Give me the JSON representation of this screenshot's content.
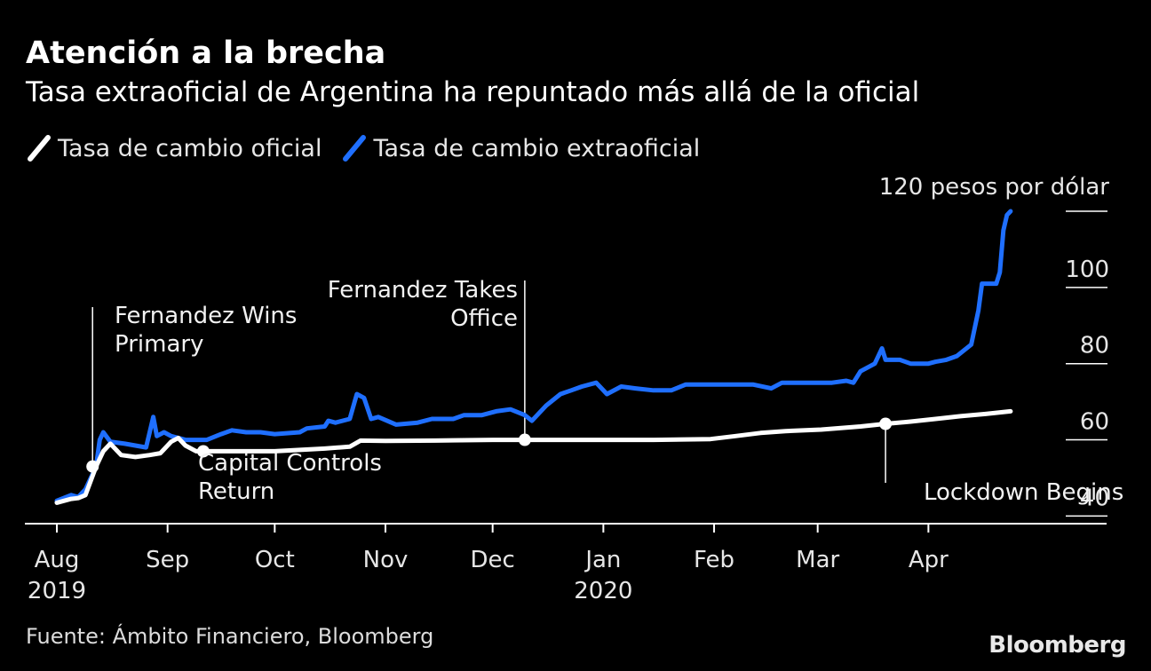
{
  "header": {
    "title": "Atención a la brecha",
    "subtitle": "Tasa extraoficial de Argentina ha repuntado más allá de la oficial"
  },
  "legend": [
    {
      "label": "Tasa de cambio oficial",
      "color": "#ffffff"
    },
    {
      "label": "Tasa de cambio extraoficial",
      "color": "#1f6fff"
    }
  ],
  "footer": {
    "source": "Fuente: Ámbito Financiero, Bloomberg",
    "brand": "Bloomberg"
  },
  "chart_data": {
    "type": "line",
    "y_unit_label": "120 pesos por dólar",
    "y_ticks": [
      40,
      60,
      80,
      100,
      120
    ],
    "y_tick_labels": [
      "40",
      "60",
      "80",
      "100",
      ""
    ],
    "ylim": [
      38,
      120
    ],
    "xlim": [
      "2019-08-01",
      "2020-04-30"
    ],
    "x_ticks": [
      {
        "date": "2019-08-01",
        "label": "Aug",
        "year": "2019"
      },
      {
        "date": "2019-09-01",
        "label": "Sep",
        "year": ""
      },
      {
        "date": "2019-10-01",
        "label": "Oct",
        "year": ""
      },
      {
        "date": "2019-11-01",
        "label": "Nov",
        "year": ""
      },
      {
        "date": "2019-12-01",
        "label": "Dec",
        "year": ""
      },
      {
        "date": "2020-01-01",
        "label": "Jan",
        "year": "2020"
      },
      {
        "date": "2020-02-01",
        "label": "Feb",
        "year": ""
      },
      {
        "date": "2020-03-01",
        "label": "Mar",
        "year": ""
      },
      {
        "date": "2020-04-01",
        "label": "Apr",
        "year": ""
      }
    ],
    "grid": false,
    "series": [
      {
        "name": "Tasa de cambio oficial",
        "color": "#ffffff",
        "points": [
          [
            "2019-08-01",
            43.5
          ],
          [
            "2019-08-05",
            44.5
          ],
          [
            "2019-08-07",
            44.7
          ],
          [
            "2019-08-09",
            45.5
          ],
          [
            "2019-08-12",
            53.0
          ],
          [
            "2019-08-14",
            57.0
          ],
          [
            "2019-08-16",
            59.0
          ],
          [
            "2019-08-19",
            56.0
          ],
          [
            "2019-08-23",
            55.5
          ],
          [
            "2019-08-27",
            56.0
          ],
          [
            "2019-08-30",
            56.5
          ],
          [
            "2019-09-02",
            59.5
          ],
          [
            "2019-09-04",
            60.5
          ],
          [
            "2019-09-06",
            58.5
          ],
          [
            "2019-09-09",
            57.0
          ],
          [
            "2019-09-16",
            57.0
          ],
          [
            "2019-09-23",
            57.0
          ],
          [
            "2019-10-01",
            57.0
          ],
          [
            "2019-10-15",
            57.7
          ],
          [
            "2019-10-22",
            58.2
          ],
          [
            "2019-10-25",
            59.8
          ],
          [
            "2019-11-01",
            59.7
          ],
          [
            "2019-11-15",
            59.8
          ],
          [
            "2019-12-01",
            60.0
          ],
          [
            "2019-12-10",
            60.0
          ],
          [
            "2020-01-01",
            60.0
          ],
          [
            "2020-01-15",
            60.0
          ],
          [
            "2020-01-31",
            60.2
          ],
          [
            "2020-02-07",
            61.0
          ],
          [
            "2020-02-14",
            61.8
          ],
          [
            "2020-02-21",
            62.3
          ],
          [
            "2020-03-02",
            62.7
          ],
          [
            "2020-03-13",
            63.5
          ],
          [
            "2020-03-20",
            64.2
          ],
          [
            "2020-03-27",
            64.8
          ],
          [
            "2020-04-03",
            65.5
          ],
          [
            "2020-04-10",
            66.2
          ],
          [
            "2020-04-17",
            66.8
          ],
          [
            "2020-04-24",
            67.5
          ]
        ]
      },
      {
        "name": "Tasa de cambio extraoficial",
        "color": "#1f6fff",
        "points": [
          [
            "2019-08-01",
            44.0
          ],
          [
            "2019-08-05",
            45.5
          ],
          [
            "2019-08-07",
            45.0
          ],
          [
            "2019-08-09",
            47.0
          ],
          [
            "2019-08-12",
            53.0
          ],
          [
            "2019-08-13",
            60.0
          ],
          [
            "2019-08-14",
            62.0
          ],
          [
            "2019-08-16",
            59.5
          ],
          [
            "2019-08-20",
            59.0
          ],
          [
            "2019-08-23",
            58.5
          ],
          [
            "2019-08-26",
            58.0
          ],
          [
            "2019-08-28",
            66.0
          ],
          [
            "2019-08-29",
            61.0
          ],
          [
            "2019-08-31",
            62.0
          ],
          [
            "2019-09-02",
            61.0
          ],
          [
            "2019-09-06",
            60.0
          ],
          [
            "2019-09-12",
            60.0
          ],
          [
            "2019-09-16",
            61.5
          ],
          [
            "2019-09-19",
            62.5
          ],
          [
            "2019-09-23",
            62.0
          ],
          [
            "2019-09-27",
            62.0
          ],
          [
            "2019-10-01",
            61.5
          ],
          [
            "2019-10-08",
            62.0
          ],
          [
            "2019-10-10",
            63.0
          ],
          [
            "2019-10-15",
            63.5
          ],
          [
            "2019-10-16",
            65.0
          ],
          [
            "2019-10-18",
            64.5
          ],
          [
            "2019-10-22",
            65.5
          ],
          [
            "2019-10-24",
            72.0
          ],
          [
            "2019-10-26",
            71.0
          ],
          [
            "2019-10-28",
            65.5
          ],
          [
            "2019-10-30",
            66.0
          ],
          [
            "2019-11-04",
            64.0
          ],
          [
            "2019-11-10",
            64.5
          ],
          [
            "2019-11-14",
            65.5
          ],
          [
            "2019-11-20",
            65.5
          ],
          [
            "2019-11-23",
            66.5
          ],
          [
            "2019-11-28",
            66.5
          ],
          [
            "2019-12-02",
            67.5
          ],
          [
            "2019-12-06",
            68.0
          ],
          [
            "2019-12-10",
            66.5
          ],
          [
            "2019-12-12",
            65.0
          ],
          [
            "2019-12-16",
            69.0
          ],
          [
            "2019-12-20",
            72.0
          ],
          [
            "2019-12-23",
            73.0
          ],
          [
            "2019-12-26",
            74.0
          ],
          [
            "2019-12-30",
            75.0
          ],
          [
            "2020-01-02",
            72.0
          ],
          [
            "2020-01-06",
            74.0
          ],
          [
            "2020-01-10",
            73.5
          ],
          [
            "2020-01-15",
            73.0
          ],
          [
            "2020-01-20",
            73.0
          ],
          [
            "2020-01-24",
            74.5
          ],
          [
            "2020-01-31",
            74.5
          ],
          [
            "2020-02-07",
            74.5
          ],
          [
            "2020-02-12",
            74.5
          ],
          [
            "2020-02-17",
            73.5
          ],
          [
            "2020-02-20",
            75.0
          ],
          [
            "2020-02-27",
            75.0
          ],
          [
            "2020-03-05",
            75.0
          ],
          [
            "2020-03-09",
            75.5
          ],
          [
            "2020-03-11",
            75.0
          ],
          [
            "2020-03-13",
            78.0
          ],
          [
            "2020-03-17",
            80.0
          ],
          [
            "2020-03-19",
            84.0
          ],
          [
            "2020-03-20",
            81.0
          ],
          [
            "2020-03-24",
            81.0
          ],
          [
            "2020-03-27",
            80.0
          ],
          [
            "2020-04-01",
            80.0
          ],
          [
            "2020-04-03",
            80.5
          ],
          [
            "2020-04-06",
            81.0
          ],
          [
            "2020-04-09",
            82.0
          ],
          [
            "2020-04-13",
            85.0
          ],
          [
            "2020-04-15",
            94.0
          ],
          [
            "2020-04-16",
            101.0
          ],
          [
            "2020-04-20",
            101.0
          ],
          [
            "2020-04-21",
            104.0
          ],
          [
            "2020-04-22",
            115.0
          ],
          [
            "2020-04-23",
            119.0
          ],
          [
            "2020-04-24",
            120.0
          ]
        ]
      }
    ],
    "annotations": [
      {
        "date": "2019-08-11",
        "value": 53.0,
        "label_lines": [
          "Fernandez Wins",
          "Primary"
        ]
      },
      {
        "date": "2019-09-11",
        "value": 57.0,
        "label_lines": [
          "Capital Controls",
          "Return"
        ]
      },
      {
        "date": "2019-12-10",
        "value": 60.0,
        "label_lines": [
          "Fernandez Takes",
          "Office"
        ]
      },
      {
        "date": "2020-03-20",
        "value": 64.2,
        "label_lines": [
          "Lockdown Begins"
        ]
      }
    ]
  }
}
